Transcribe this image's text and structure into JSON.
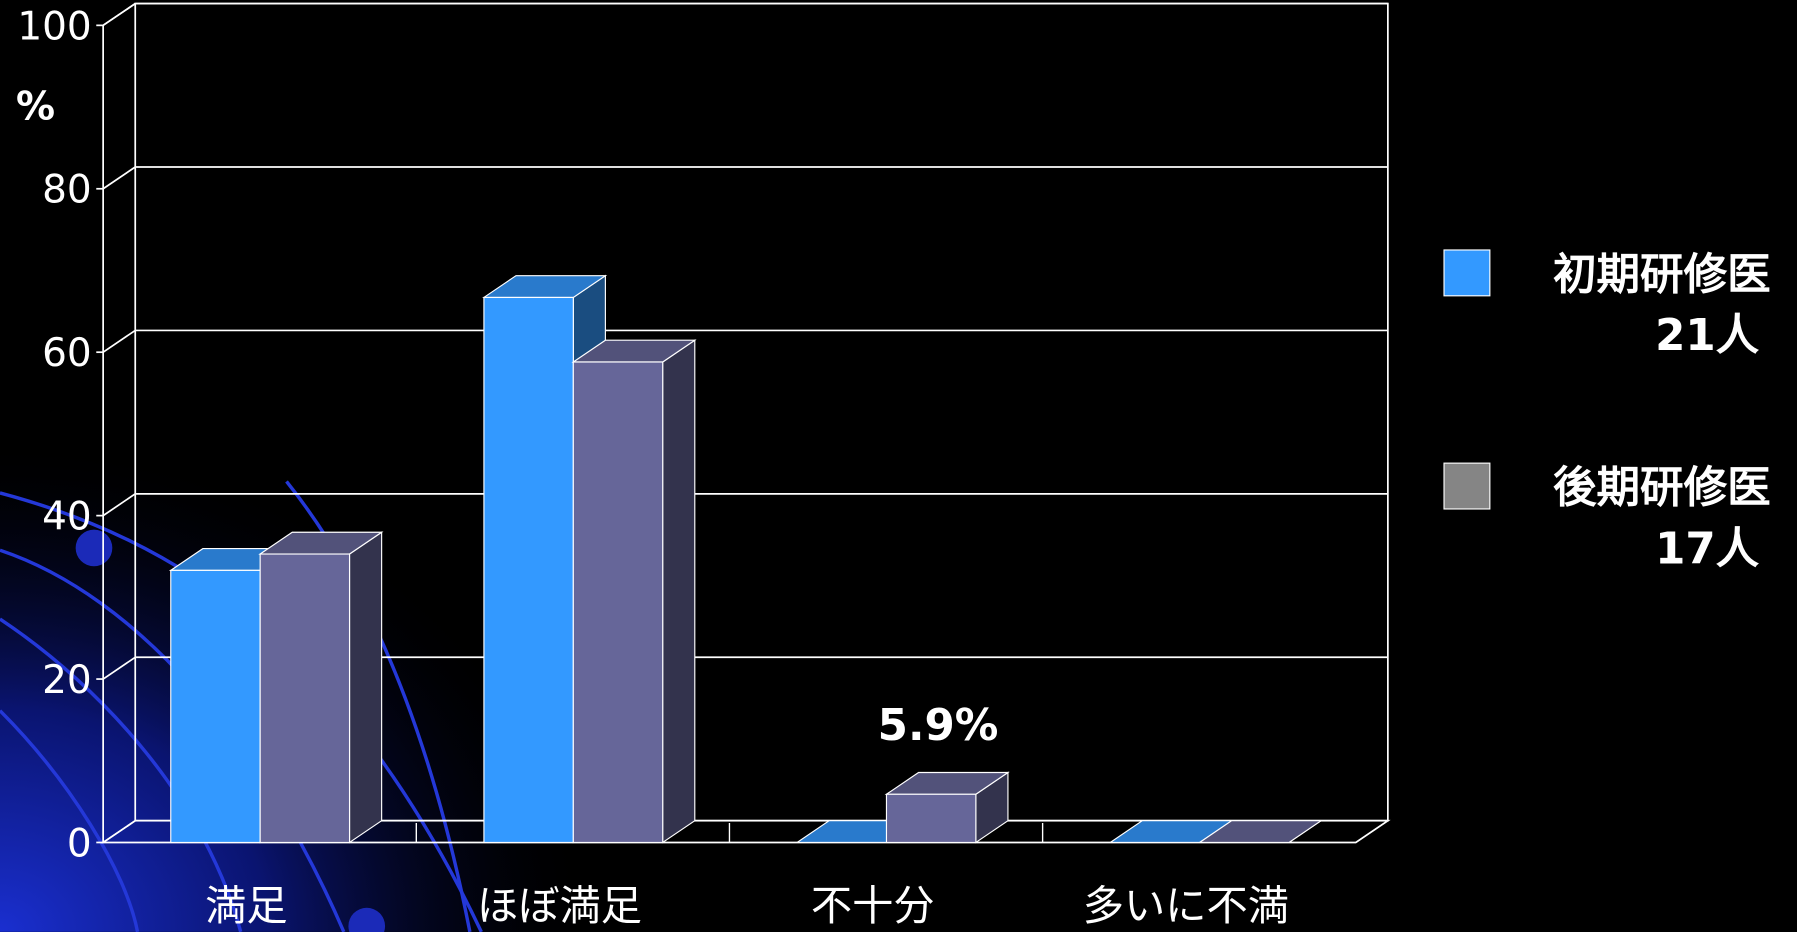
{
  "chart_data": {
    "type": "bar3d",
    "y_label": "%",
    "categories": [
      "満足",
      "ほぼ満足",
      "不十分",
      "多いに不満"
    ],
    "series": [
      {
        "name": "初期研修医\n21人",
        "color": "#3399ff",
        "legend_color": "#3399ff",
        "values": [
          33.3,
          66.7,
          0,
          0
        ]
      },
      {
        "name": "後期研修医\n17人",
        "color": "#666699",
        "legend_color": "#858585",
        "values": [
          35.3,
          58.8,
          5.9,
          0
        ],
        "value_labels": [
          null,
          null,
          "5.9%",
          null
        ]
      }
    ],
    "ylim": [
      0,
      100
    ],
    "yticks": [
      0,
      20,
      40,
      60,
      80,
      100
    ],
    "grid": true,
    "legend": "right"
  }
}
